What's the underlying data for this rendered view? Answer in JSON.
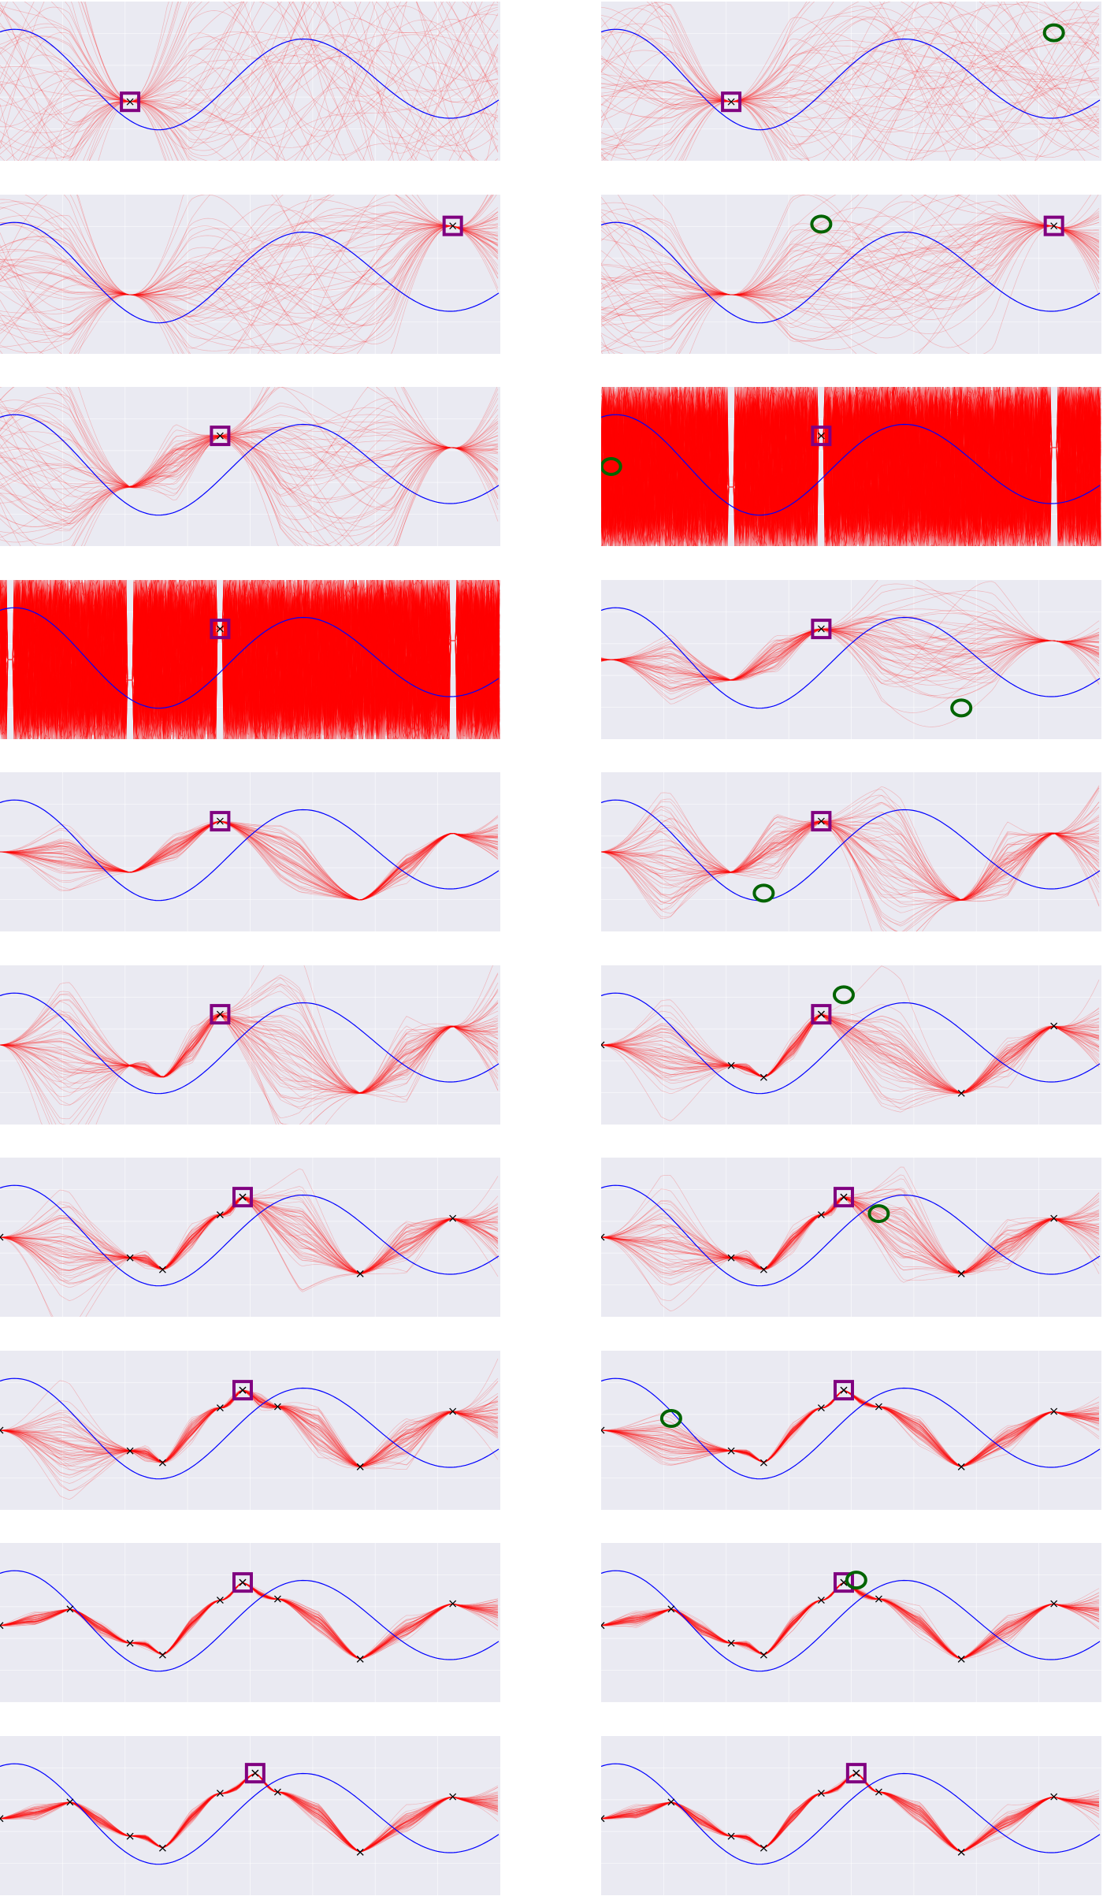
{
  "figure": {
    "colors": {
      "background": "#eaeaf2",
      "samples": "#ff0000",
      "true_function": "#0000ff",
      "current_best": "#800080",
      "next_query": "#006400",
      "observed": "#000000"
    },
    "icon_names": [
      "best-point-square-icon",
      "next-query-circle-icon",
      "observation-x-icon"
    ]
  },
  "chart_data": [
    {
      "type": "line",
      "panel": 1,
      "obs": [
        [
          0.26,
          -0.35
        ]
      ],
      "best": [
        0.26,
        -0.35
      ],
      "next": null,
      "spread": 2.6,
      "samples": 1.0,
      "obs_marked": false
    },
    {
      "type": "line",
      "panel": 2,
      "obs": [
        [
          0.26,
          -0.35
        ]
      ],
      "best": [
        0.26,
        -0.35
      ],
      "next": [
        0.905,
        0.82
      ],
      "spread": 1.6,
      "samples": 1.0,
      "obs_marked": false
    },
    {
      "type": "line",
      "panel": 3,
      "obs": [
        [
          0.26,
          -0.35
        ],
        [
          0.905,
          0.82
        ]
      ],
      "best": [
        0.905,
        0.82
      ],
      "next": null,
      "spread": 1.6,
      "samples": 1.0,
      "obs_marked": false
    },
    {
      "type": "line",
      "panel": 4,
      "obs": [
        [
          0.26,
          -0.35
        ],
        [
          0.905,
          0.82
        ]
      ],
      "best": [
        0.905,
        0.82
      ],
      "next": [
        0.44,
        0.85
      ],
      "spread": 1.4,
      "samples": 1.0,
      "obs_marked": false
    },
    {
      "type": "line",
      "panel": 5,
      "obs": [
        [
          0.26,
          -0.35
        ],
        [
          0.44,
          0.52
        ],
        [
          0.905,
          0.32
        ]
      ],
      "best": [
        0.44,
        0.52
      ],
      "next": null,
      "spread": 1.6,
      "samples": 1.0,
      "obs_marked": false
    },
    {
      "type": "line",
      "panel": 6,
      "obs": [
        [
          0.26,
          -0.35
        ],
        [
          0.44,
          0.52
        ],
        [
          0.905,
          0.32
        ]
      ],
      "best": [
        0.44,
        0.52
      ],
      "next": [
        0.02,
        0.0
      ],
      "spread": 0.0,
      "samples": 1.0,
      "obs_marked": false,
      "dense": true
    },
    {
      "type": "line",
      "panel": 7,
      "obs": [
        [
          0.02,
          0.0
        ],
        [
          0.26,
          -0.35
        ],
        [
          0.44,
          0.52
        ],
        [
          0.905,
          0.32
        ]
      ],
      "best": [
        0.44,
        0.52
      ],
      "next": null,
      "spread": 0.0,
      "samples": 1.0,
      "obs_marked": false,
      "dense": true
    },
    {
      "type": "line",
      "panel": 8,
      "obs": [
        [
          0.02,
          0.0
        ],
        [
          0.26,
          -0.35
        ],
        [
          0.44,
          0.52
        ],
        [
          0.905,
          0.32
        ]
      ],
      "best": [
        0.44,
        0.52
      ],
      "next": [
        0.72,
        -0.82
      ],
      "spread": 0.9,
      "samples": 1.0,
      "obs_marked": false
    },
    {
      "type": "line",
      "panel": 9,
      "obs": [
        [
          0.0,
          0.0
        ],
        [
          0.26,
          -0.35
        ],
        [
          0.44,
          0.52
        ],
        [
          0.72,
          -0.82
        ],
        [
          0.905,
          0.32
        ]
      ],
      "best": [
        0.44,
        0.52
      ],
      "next": null,
      "spread": 0.6,
      "samples": 1.0,
      "obs_marked": false
    },
    {
      "type": "line",
      "panel": 10,
      "obs": [
        [
          0.0,
          0.0
        ],
        [
          0.26,
          -0.35
        ],
        [
          0.44,
          0.52
        ],
        [
          0.72,
          -0.82
        ],
        [
          0.905,
          0.32
        ]
      ],
      "best": [
        0.44,
        0.52
      ],
      "next": [
        0.325,
        -0.7
      ],
      "spread": 1.5,
      "samples": 1.0,
      "obs_marked": false
    },
    {
      "type": "line",
      "panel": 11,
      "obs": [
        [
          0.0,
          0.0
        ],
        [
          0.26,
          -0.35
        ],
        [
          0.325,
          -0.55
        ],
        [
          0.44,
          0.52
        ],
        [
          0.72,
          -0.82
        ],
        [
          0.905,
          0.32
        ]
      ],
      "best": [
        0.44,
        0.52
      ],
      "next": null,
      "spread": 1.5,
      "samples": 1.0,
      "obs_marked": false
    },
    {
      "type": "line",
      "panel": 12,
      "obs": [
        [
          0.0,
          0.0
        ],
        [
          0.26,
          -0.35
        ],
        [
          0.325,
          -0.55
        ],
        [
          0.44,
          0.52
        ],
        [
          0.72,
          -0.82
        ],
        [
          0.905,
          0.32
        ]
      ],
      "best": [
        0.44,
        0.52
      ],
      "next": [
        0.485,
        0.85
      ],
      "spread": 1.0,
      "samples": 1.0,
      "obs_marked": true
    },
    {
      "type": "line",
      "panel": 13,
      "obs": [
        [
          0.0,
          0.0
        ],
        [
          0.26,
          -0.35
        ],
        [
          0.325,
          -0.55
        ],
        [
          0.44,
          0.38
        ],
        [
          0.485,
          0.68
        ],
        [
          0.72,
          -0.62
        ],
        [
          0.905,
          0.32
        ]
      ],
      "best": [
        0.485,
        0.68
      ],
      "next": null,
      "spread": 1.0,
      "samples": 1.0,
      "obs_marked": true
    },
    {
      "type": "line",
      "panel": 14,
      "obs": [
        [
          0.0,
          0.0
        ],
        [
          0.26,
          -0.35
        ],
        [
          0.325,
          -0.55
        ],
        [
          0.44,
          0.38
        ],
        [
          0.485,
          0.68
        ],
        [
          0.72,
          -0.62
        ],
        [
          0.905,
          0.32
        ]
      ],
      "best": [
        0.485,
        0.68
      ],
      "next": [
        0.555,
        0.4
      ],
      "spread": 1.1,
      "samples": 1.0,
      "obs_marked": true
    },
    {
      "type": "line",
      "panel": 15,
      "obs": [
        [
          0.0,
          0.0
        ],
        [
          0.26,
          -0.35
        ],
        [
          0.325,
          -0.55
        ],
        [
          0.44,
          0.38
        ],
        [
          0.485,
          0.68
        ],
        [
          0.555,
          0.4
        ],
        [
          0.72,
          -0.62
        ],
        [
          0.905,
          0.32
        ]
      ],
      "best": [
        0.485,
        0.68
      ],
      "next": null,
      "spread": 1.0,
      "samples": 1.0,
      "obs_marked": true
    },
    {
      "type": "line",
      "panel": 16,
      "obs": [
        [
          0.0,
          0.0
        ],
        [
          0.26,
          -0.35
        ],
        [
          0.325,
          -0.55
        ],
        [
          0.44,
          0.38
        ],
        [
          0.485,
          0.68
        ],
        [
          0.555,
          0.4
        ],
        [
          0.72,
          -0.62
        ],
        [
          0.905,
          0.32
        ]
      ],
      "best": [
        0.485,
        0.68
      ],
      "next": [
        0.14,
        0.2
      ],
      "spread": 0.45,
      "samples": 1.0,
      "obs_marked": true
    },
    {
      "type": "line",
      "panel": 17,
      "obs": [
        [
          0.0,
          -0.05
        ],
        [
          0.14,
          0.23
        ],
        [
          0.26,
          -0.35
        ],
        [
          0.325,
          -0.55
        ],
        [
          0.44,
          0.38
        ],
        [
          0.485,
          0.68
        ],
        [
          0.555,
          0.4
        ],
        [
          0.72,
          -0.62
        ],
        [
          0.905,
          0.32
        ]
      ],
      "best": [
        0.485,
        0.68
      ],
      "next": null,
      "spread": 0.4,
      "samples": 1.0,
      "obs_marked": true
    },
    {
      "type": "line",
      "panel": 18,
      "obs": [
        [
          0.0,
          -0.05
        ],
        [
          0.14,
          0.23
        ],
        [
          0.26,
          -0.35
        ],
        [
          0.325,
          -0.55
        ],
        [
          0.44,
          0.38
        ],
        [
          0.485,
          0.68
        ],
        [
          0.555,
          0.4
        ],
        [
          0.72,
          -0.62
        ],
        [
          0.905,
          0.32
        ]
      ],
      "best": [
        0.485,
        0.68
      ],
      "next": [
        0.51,
        0.72
      ],
      "spread": 0.45,
      "samples": 1.0,
      "obs_marked": true
    },
    {
      "type": "line",
      "panel": 19,
      "obs": [
        [
          0.0,
          -0.05
        ],
        [
          0.14,
          0.23
        ],
        [
          0.26,
          -0.35
        ],
        [
          0.325,
          -0.55
        ],
        [
          0.44,
          0.38
        ],
        [
          0.51,
          0.72
        ],
        [
          0.555,
          0.4
        ],
        [
          0.72,
          -0.62
        ],
        [
          0.905,
          0.32
        ]
      ],
      "best": [
        0.51,
        0.72
      ],
      "next": null,
      "spread": 0.45,
      "samples": 1.0,
      "obs_marked": true
    },
    {
      "type": "line",
      "panel": 20,
      "obs": [
        [
          0.0,
          -0.05
        ],
        [
          0.14,
          0.23
        ],
        [
          0.26,
          -0.35
        ],
        [
          0.325,
          -0.55
        ],
        [
          0.44,
          0.38
        ],
        [
          0.51,
          0.72
        ],
        [
          0.555,
          0.4
        ],
        [
          0.72,
          -0.62
        ],
        [
          0.905,
          0.32
        ]
      ],
      "best": [
        0.51,
        0.72
      ],
      "next": null,
      "spread": 0.45,
      "samples": 1.0,
      "obs_marked": true
    }
  ]
}
